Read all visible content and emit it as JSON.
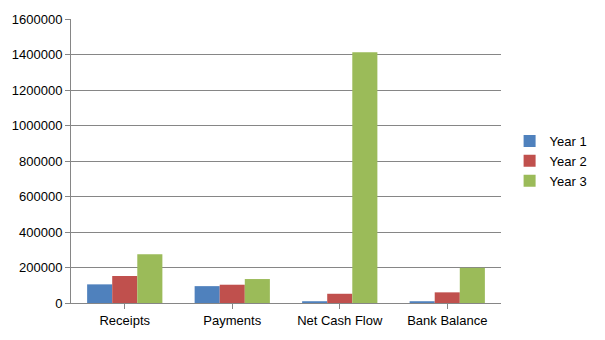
{
  "chart_data": {
    "type": "bar",
    "categories": [
      "Receipts",
      "Payments",
      "Net Cash Flow",
      "Bank Balance"
    ],
    "series": [
      {
        "name": "Year 1",
        "color": "#4f81bd",
        "values": [
          105000,
          95000,
          10000,
          10000
        ]
      },
      {
        "name": "Year 2",
        "color": "#c0504d",
        "values": [
          152000,
          103000,
          52000,
          60000
        ]
      },
      {
        "name": "Year 3",
        "color": "#9bbb59",
        "values": [
          275000,
          135000,
          1412000,
          198000
        ]
      }
    ],
    "ylim": [
      0,
      1600000
    ],
    "yticks": [
      0,
      200000,
      400000,
      600000,
      800000,
      1000000,
      1200000,
      1400000,
      1600000
    ],
    "grid": true,
    "legend": "right"
  }
}
